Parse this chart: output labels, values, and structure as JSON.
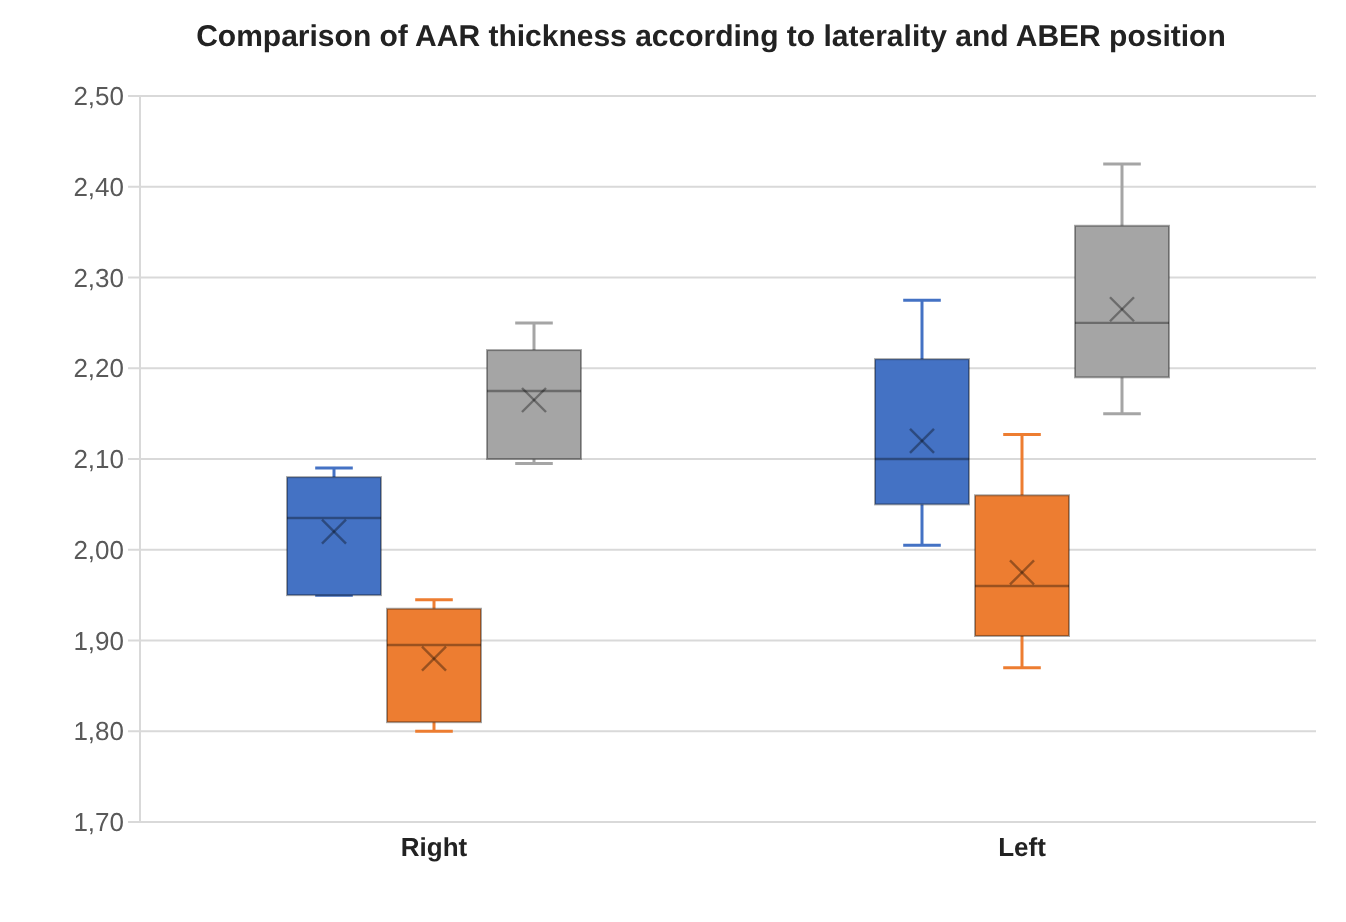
{
  "chart_data": {
    "type": "box",
    "title": "Comparison of AAR thickness according to laterality and ABER position",
    "categories": [
      "Right",
      "Left"
    ],
    "series": [
      {
        "color": "#4472c4",
        "boxes": [
          {
            "low": 1.95,
            "q1": 1.95,
            "median": 2.035,
            "q3": 2.08,
            "high": 2.09,
            "mean": 2.02
          },
          {
            "low": 2.005,
            "q1": 2.05,
            "median": 2.1,
            "q3": 2.21,
            "high": 2.275,
            "mean": 2.12
          }
        ]
      },
      {
        "color": "#ed7d31",
        "boxes": [
          {
            "low": 1.8,
            "q1": 1.81,
            "median": 1.895,
            "q3": 1.935,
            "high": 1.945,
            "mean": 1.88
          },
          {
            "low": 1.87,
            "q1": 1.905,
            "median": 1.96,
            "q3": 2.06,
            "high": 2.127,
            "mean": 1.975
          }
        ]
      },
      {
        "color": "#a5a5a5",
        "boxes": [
          {
            "low": 2.095,
            "q1": 2.1,
            "median": 2.175,
            "q3": 2.22,
            "high": 2.25,
            "mean": 2.165
          },
          {
            "low": 2.15,
            "q1": 2.19,
            "median": 2.25,
            "q3": 2.357,
            "high": 2.425,
            "mean": 2.265
          }
        ]
      }
    ],
    "ylim": [
      1.7,
      2.5
    ],
    "yticks": [
      {
        "value": 1.7,
        "label": "1,70"
      },
      {
        "value": 1.8,
        "label": "1,80"
      },
      {
        "value": 1.9,
        "label": "1,90"
      },
      {
        "value": 2.0,
        "label": "2,00"
      },
      {
        "value": 2.1,
        "label": "2,10"
      },
      {
        "value": 2.2,
        "label": "2,20"
      },
      {
        "value": 2.3,
        "label": "2,30"
      },
      {
        "value": 2.4,
        "label": "2,40"
      },
      {
        "value": 2.5,
        "label": "2,50"
      }
    ],
    "grid": "y"
  }
}
